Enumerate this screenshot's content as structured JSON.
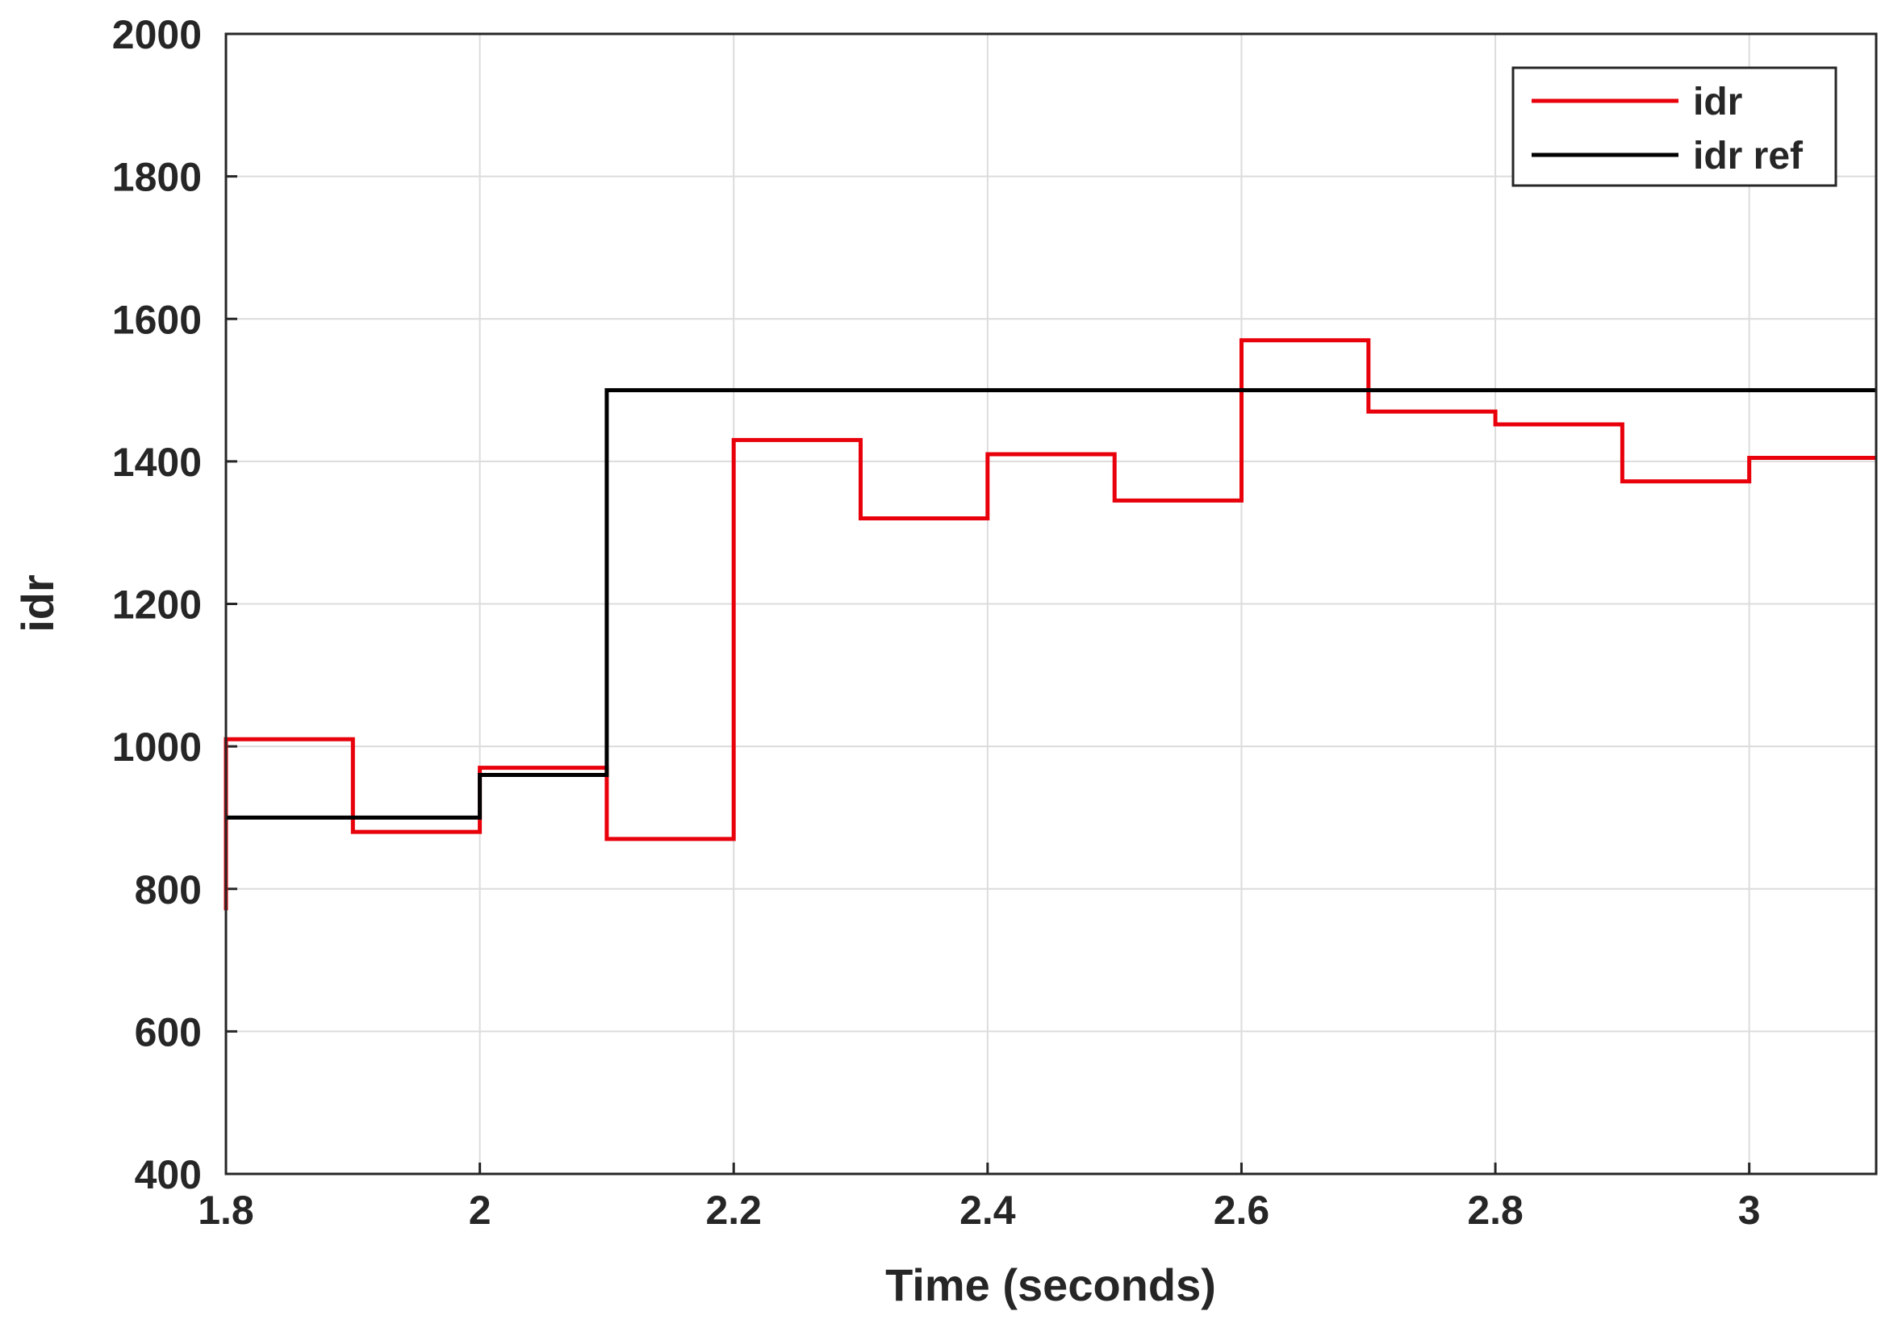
{
  "chart_data": {
    "type": "line",
    "step": true,
    "xlabel": "Time (seconds)",
    "ylabel": "idr",
    "xlim": [
      1.8,
      3.1
    ],
    "ylim": [
      400,
      2000
    ],
    "xticks": [
      1.8,
      2,
      2.2,
      2.4,
      2.6,
      2.8,
      3
    ],
    "xtick_labels": [
      "1.8",
      "2",
      "2.2",
      "2.4",
      "2.6",
      "2.8",
      "3"
    ],
    "yticks": [
      400,
      600,
      800,
      1000,
      1200,
      1400,
      1600,
      1800,
      2000
    ],
    "ytick_labels": [
      "400",
      "600",
      "800",
      "1000",
      "1200",
      "1400",
      "1600",
      "1800",
      "2000"
    ],
    "grid": true,
    "legend_position": "top-right",
    "series": [
      {
        "name": "idr",
        "color": "#e8000b",
        "x": [
          1.8,
          1.8,
          1.8,
          1.9,
          1.9,
          2.0,
          2.0,
          2.1,
          2.1,
          2.2,
          2.2,
          2.3,
          2.3,
          2.4,
          2.4,
          2.5,
          2.5,
          2.6,
          2.6,
          2.7,
          2.7,
          2.8,
          2.8,
          2.9,
          2.9,
          3.0,
          3.0,
          3.1
        ],
        "y": [
          770,
          1010,
          1010,
          1010,
          880,
          880,
          970,
          970,
          870,
          870,
          1430,
          1430,
          1320,
          1320,
          1410,
          1410,
          1345,
          1345,
          1570,
          1570,
          1470,
          1470,
          1452,
          1452,
          1372,
          1372,
          1405,
          1405
        ]
      },
      {
        "name": "idr ref",
        "color": "#000000",
        "x": [
          1.8,
          2.0,
          2.0,
          2.1,
          2.1,
          3.1
        ],
        "y": [
          900,
          900,
          960,
          960,
          1500,
          1500
        ]
      }
    ]
  }
}
